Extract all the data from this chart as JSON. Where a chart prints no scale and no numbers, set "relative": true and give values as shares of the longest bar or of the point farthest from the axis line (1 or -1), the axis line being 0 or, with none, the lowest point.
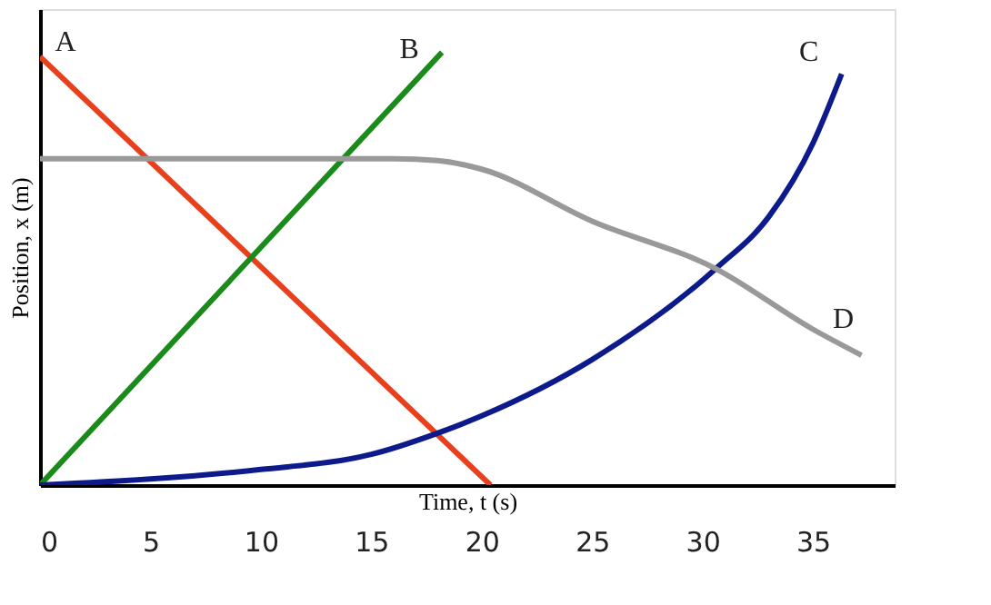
{
  "chart_data": {
    "type": "line",
    "relative": true,
    "xlabel": "Time, t (s)",
    "ylabel": "Position, x (m)",
    "xlim": [
      0,
      38.7
    ],
    "xticks": [
      0,
      5,
      10,
      15,
      20,
      25,
      30,
      35
    ],
    "grid": false,
    "legend": false,
    "marker": "none",
    "line_style": "solid",
    "series": [
      {
        "name": "A",
        "color": "#e8401c",
        "x": [
          0,
          20.4
        ],
        "values": [
          0.99,
          0
        ]
      },
      {
        "name": "B",
        "color": "#1a8a1a",
        "x": [
          0,
          18.2
        ],
        "values": [
          0,
          1
        ]
      },
      {
        "name": "C",
        "color": "#0d1a8c",
        "x": [
          0,
          5,
          10,
          15,
          18,
          20,
          25,
          30.6,
          33,
          35,
          36.3
        ],
        "values": [
          0,
          0.014,
          0.036,
          0.071,
          0.12,
          0.16,
          0.29,
          0.5,
          0.62,
          0.79,
          0.95
        ]
      },
      {
        "name": "D",
        "color": "#999999",
        "x": [
          0,
          10,
          16,
          18,
          20,
          25,
          30.6,
          35,
          37.2
        ],
        "values": [
          0.754,
          0.754,
          0.754,
          0.75,
          0.73,
          0.61,
          0.5,
          0.36,
          0.3
        ]
      }
    ]
  }
}
